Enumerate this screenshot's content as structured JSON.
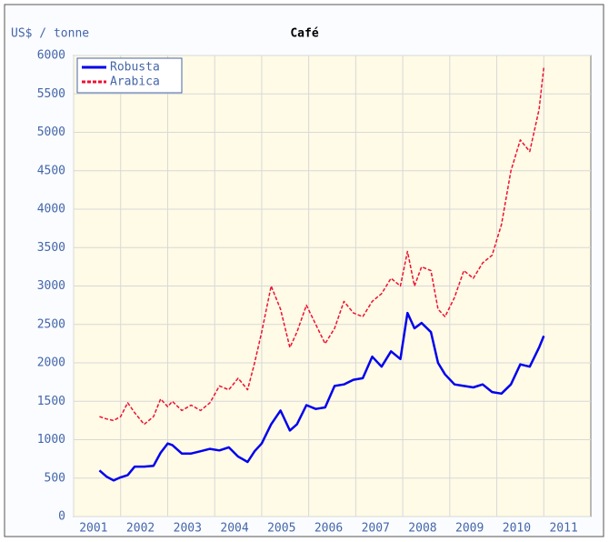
{
  "chart_data": {
    "type": "line",
    "title": "Café",
    "ylabel": "US$ / tonne",
    "x": [
      2001.55,
      2001.7,
      2001.85,
      2002.0,
      2002.15,
      2002.3,
      2002.5,
      2002.7,
      2002.85,
      2003.0,
      2003.1,
      2003.3,
      2003.5,
      2003.7,
      2003.9,
      2004.1,
      2004.3,
      2004.5,
      2004.7,
      2004.85,
      2005.0,
      2005.2,
      2005.4,
      2005.6,
      2005.75,
      2005.95,
      2006.15,
      2006.35,
      2006.55,
      2006.75,
      2006.95,
      2007.15,
      2007.35,
      2007.55,
      2007.75,
      2007.95,
      2008.1,
      2008.25,
      2008.4,
      2008.6,
      2008.75,
      2008.9,
      2009.1,
      2009.3,
      2009.5,
      2009.7,
      2009.9,
      2010.1,
      2010.3,
      2010.5,
      2010.7,
      2010.9,
      2011.0
    ],
    "series": [
      {
        "name": "Robusta",
        "color": "#0000ee",
        "values": [
          600,
          520,
          470,
          510,
          540,
          650,
          650,
          660,
          830,
          950,
          930,
          820,
          820,
          850,
          880,
          860,
          900,
          780,
          710,
          850,
          950,
          1200,
          1380,
          1120,
          1200,
          1450,
          1400,
          1420,
          1700,
          1720,
          1780,
          1800,
          2080,
          1950,
          2150,
          2050,
          2650,
          2450,
          2520,
          2400,
          2000,
          1850,
          1720,
          1700,
          1680,
          1720,
          1620,
          1600,
          1720,
          1980,
          1950,
          2200,
          2350
        ]
      },
      {
        "name": "Arabica",
        "color": "#ee1133",
        "values": [
          1300,
          1270,
          1250,
          1300,
          1480,
          1350,
          1200,
          1300,
          1530,
          1430,
          1500,
          1380,
          1450,
          1380,
          1480,
          1700,
          1650,
          1800,
          1650,
          2000,
          2400,
          3000,
          2700,
          2200,
          2400,
          2750,
          2500,
          2250,
          2450,
          2800,
          2650,
          2600,
          2800,
          2900,
          3100,
          3000,
          3450,
          3000,
          3250,
          3200,
          2700,
          2600,
          2850,
          3200,
          3100,
          3300,
          3400,
          3800,
          4500,
          4900,
          4750,
          5300,
          5850
        ]
      }
    ],
    "xlim": [
      2001,
      2012
    ],
    "xticks": [
      2001,
      2002,
      2003,
      2004,
      2005,
      2006,
      2007,
      2008,
      2009,
      2010,
      2011
    ],
    "ylim": [
      0,
      6000
    ],
    "yticks": [
      0,
      500,
      1000,
      1500,
      2000,
      2500,
      3000,
      3500,
      4000,
      4500,
      5000,
      5500,
      6000
    ],
    "grid": true,
    "legend": "upper left"
  }
}
